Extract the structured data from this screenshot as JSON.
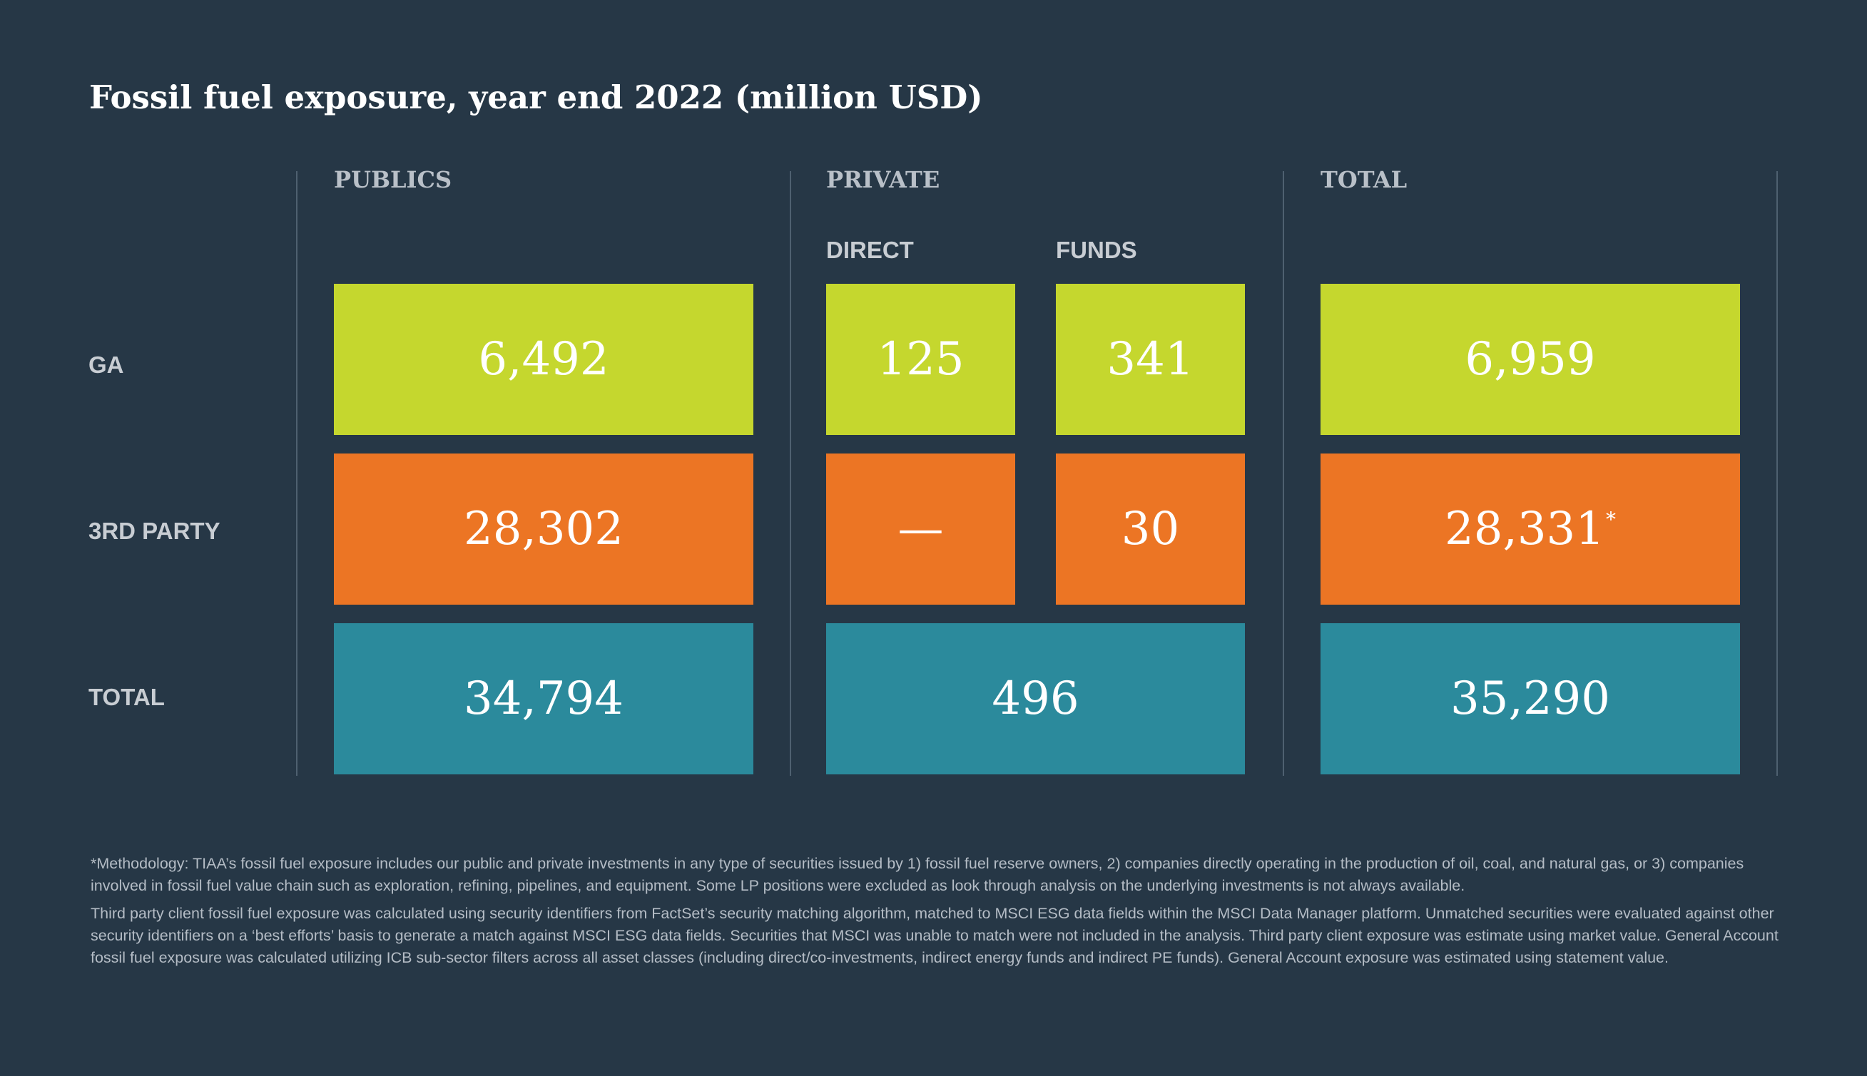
{
  "chart_data": {
    "type": "table",
    "title": "Fossil fuel exposure, year end 2022 (million USD)",
    "column_groups": {
      "publics": "PUBLICS",
      "private": "PRIVATE",
      "total": "TOTAL"
    },
    "subcolumns": {
      "direct": "DIRECT",
      "funds": "FUNDS"
    },
    "rows": {
      "ga": {
        "label": "GA",
        "publics": "6,492",
        "private_direct": "125",
        "private_funds": "341",
        "total": "6,959"
      },
      "third_party": {
        "label": "3RD PARTY",
        "publics": "28,302",
        "private_direct": "—",
        "private_funds": "30",
        "total": "28,331",
        "total_footnote_mark": "*"
      },
      "total": {
        "label": "TOTAL",
        "publics": "34,794",
        "private": "496",
        "total": "35,290"
      }
    }
  },
  "colors": {
    "background": "#263746",
    "ga": "#c5d72e",
    "third_party": "#ec7524",
    "total": "#2b8a9c"
  },
  "notes": {
    "methodology": "*Methodology: TIAA’s fossil fuel exposure includes our public and private investments in any type of securities issued by 1) fossil fuel reserve owners, 2) companies directly operating in the production of oil, coal, and natural gas, or 3) companies involved in fossil fuel value chain such as exploration, refining, pipelines, and equipment. Some LP positions were excluded as look through analysis on the underlying investments is not always available.",
    "third_party": "Third party client fossil fuel exposure was calculated using security identifiers from FactSet’s security matching algorithm, matched to MSCI ESG data fields within the MSCI Data Manager platform. Unmatched securities were evaluated against other security identifiers on a ‘best efforts’ basis to generate a match against MSCI ESG data fields. Securities that MSCI was unable to match were not included in the analysis. Third party client exposure was estimate using market value. General Account fossil fuel exposure was calculated utilizing ICB sub-sector filters across all asset classes (including direct/co-investments, indirect energy funds and indirect PE funds). General Account exposure was estimated using statement value."
  }
}
